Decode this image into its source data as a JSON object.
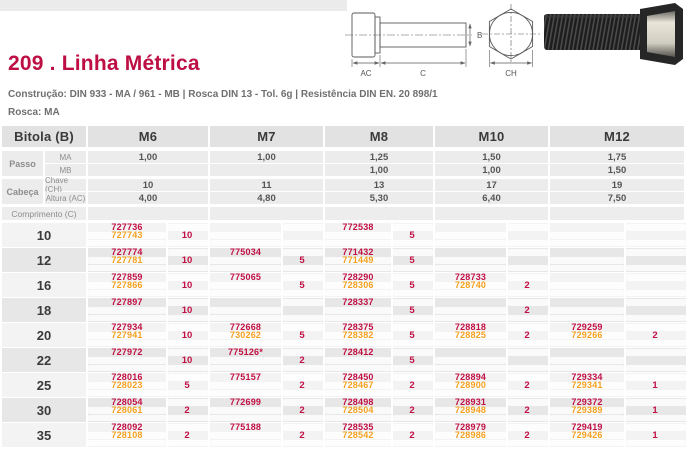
{
  "page": {
    "title": "209 . Linha Métrica",
    "subtitle": "Construção: DIN 933 - MA / 961 - MB | Rosca DIN 13 - Tol. 6g | Resistência DIN EN. 20 898/1",
    "thread": "Rosca: MA"
  },
  "colors": {
    "accent": "#bd0f44",
    "secondary_code": "#f5a11f"
  },
  "diagram": {
    "ac": "AC",
    "c": "C",
    "b": "B",
    "ch": "CH"
  },
  "table": {
    "header": {
      "bitola": "Bitola (B)",
      "sizes": [
        "M6",
        "M7",
        "M8",
        "M10",
        "M12"
      ]
    },
    "specs": [
      {
        "group": "Passo",
        "label": "MA",
        "values": [
          "1,00",
          "1,00",
          "1,25",
          "1,50",
          "1,75"
        ]
      },
      {
        "group": "Passo",
        "label": "MB",
        "values": [
          "",
          "",
          "1,00",
          "1,00",
          "1,50"
        ]
      },
      {
        "group": "Cabeça",
        "label": "Chave (CH)",
        "values": [
          "10",
          "11",
          "13",
          "17",
          "19"
        ]
      },
      {
        "group": "Cabeça",
        "label": "Altura (AC)",
        "values": [
          "4,00",
          "4,80",
          "5,30",
          "6,40",
          "7,50"
        ]
      }
    ],
    "comprimento_label": "Comprimento (C)",
    "rows": [
      {
        "length": "10",
        "cells": [
          {
            "code1": "727736",
            "code2": "727743",
            "qty": "10"
          },
          {},
          {
            "code1": "772538",
            "qty": "5"
          },
          {},
          {}
        ]
      },
      {
        "length": "12",
        "cells": [
          {
            "code1": "727774",
            "code2": "727781",
            "qty": "10"
          },
          {
            "code1": "775034",
            "qty": "5"
          },
          {
            "code1": "771432",
            "code2": "771449",
            "qty": "5"
          },
          {},
          {}
        ]
      },
      {
        "length": "16",
        "cells": [
          {
            "code1": "727859",
            "code2": "727866",
            "qty": "10"
          },
          {
            "code1": "775065",
            "qty": "5"
          },
          {
            "code1": "728290",
            "code2": "728306",
            "qty": "5"
          },
          {
            "code1": "728733",
            "code2": "728740",
            "qty": "2"
          },
          {}
        ]
      },
      {
        "length": "18",
        "cells": [
          {
            "code1": "727897",
            "qty": "10"
          },
          {},
          {
            "code1": "728337",
            "qty": "5"
          },
          {
            "qty": "2"
          },
          {}
        ]
      },
      {
        "length": "20",
        "cells": [
          {
            "code1": "727934",
            "code2": "727941",
            "qty": "10"
          },
          {
            "code1": "772668",
            "code2": "730262",
            "qty": "5"
          },
          {
            "code1": "728375",
            "code2": "728382",
            "qty": "5"
          },
          {
            "code1": "728818",
            "code2": "728825",
            "qty": "2"
          },
          {
            "code1": "729259",
            "code2": "729266",
            "qty": "2"
          }
        ]
      },
      {
        "length": "22",
        "cells": [
          {
            "code1": "727972",
            "qty": "10"
          },
          {
            "code1": "775126*",
            "qty": "2"
          },
          {
            "code1": "728412",
            "qty": "5"
          },
          {},
          {}
        ]
      },
      {
        "length": "25",
        "cells": [
          {
            "code1": "728016",
            "code2": "728023",
            "qty": "5"
          },
          {
            "code1": "775157",
            "qty": "2"
          },
          {
            "code1": "728450",
            "code2": "728467",
            "qty": "2"
          },
          {
            "code1": "728894",
            "code2": "728900",
            "qty": "2"
          },
          {
            "code1": "729334",
            "code2": "729341",
            "qty": "1"
          }
        ]
      },
      {
        "length": "30",
        "cells": [
          {
            "code1": "728054",
            "code2": "728061",
            "qty": "2"
          },
          {
            "code1": "772699",
            "qty": "2"
          },
          {
            "code1": "728498",
            "code2": "728504",
            "qty": "2"
          },
          {
            "code1": "728931",
            "code2": "728948",
            "qty": "2"
          },
          {
            "code1": "729372",
            "code2": "729389",
            "qty": "1"
          }
        ]
      },
      {
        "length": "35",
        "cells": [
          {
            "code1": "728092",
            "code2": "728108",
            "qty": "2"
          },
          {
            "code1": "775188",
            "qty": "2"
          },
          {
            "code1": "728535",
            "code2": "728542",
            "qty": "2"
          },
          {
            "code1": "728979",
            "code2": "728986",
            "qty": "2"
          },
          {
            "code1": "729419",
            "code2": "729426",
            "qty": "1"
          }
        ]
      }
    ]
  }
}
